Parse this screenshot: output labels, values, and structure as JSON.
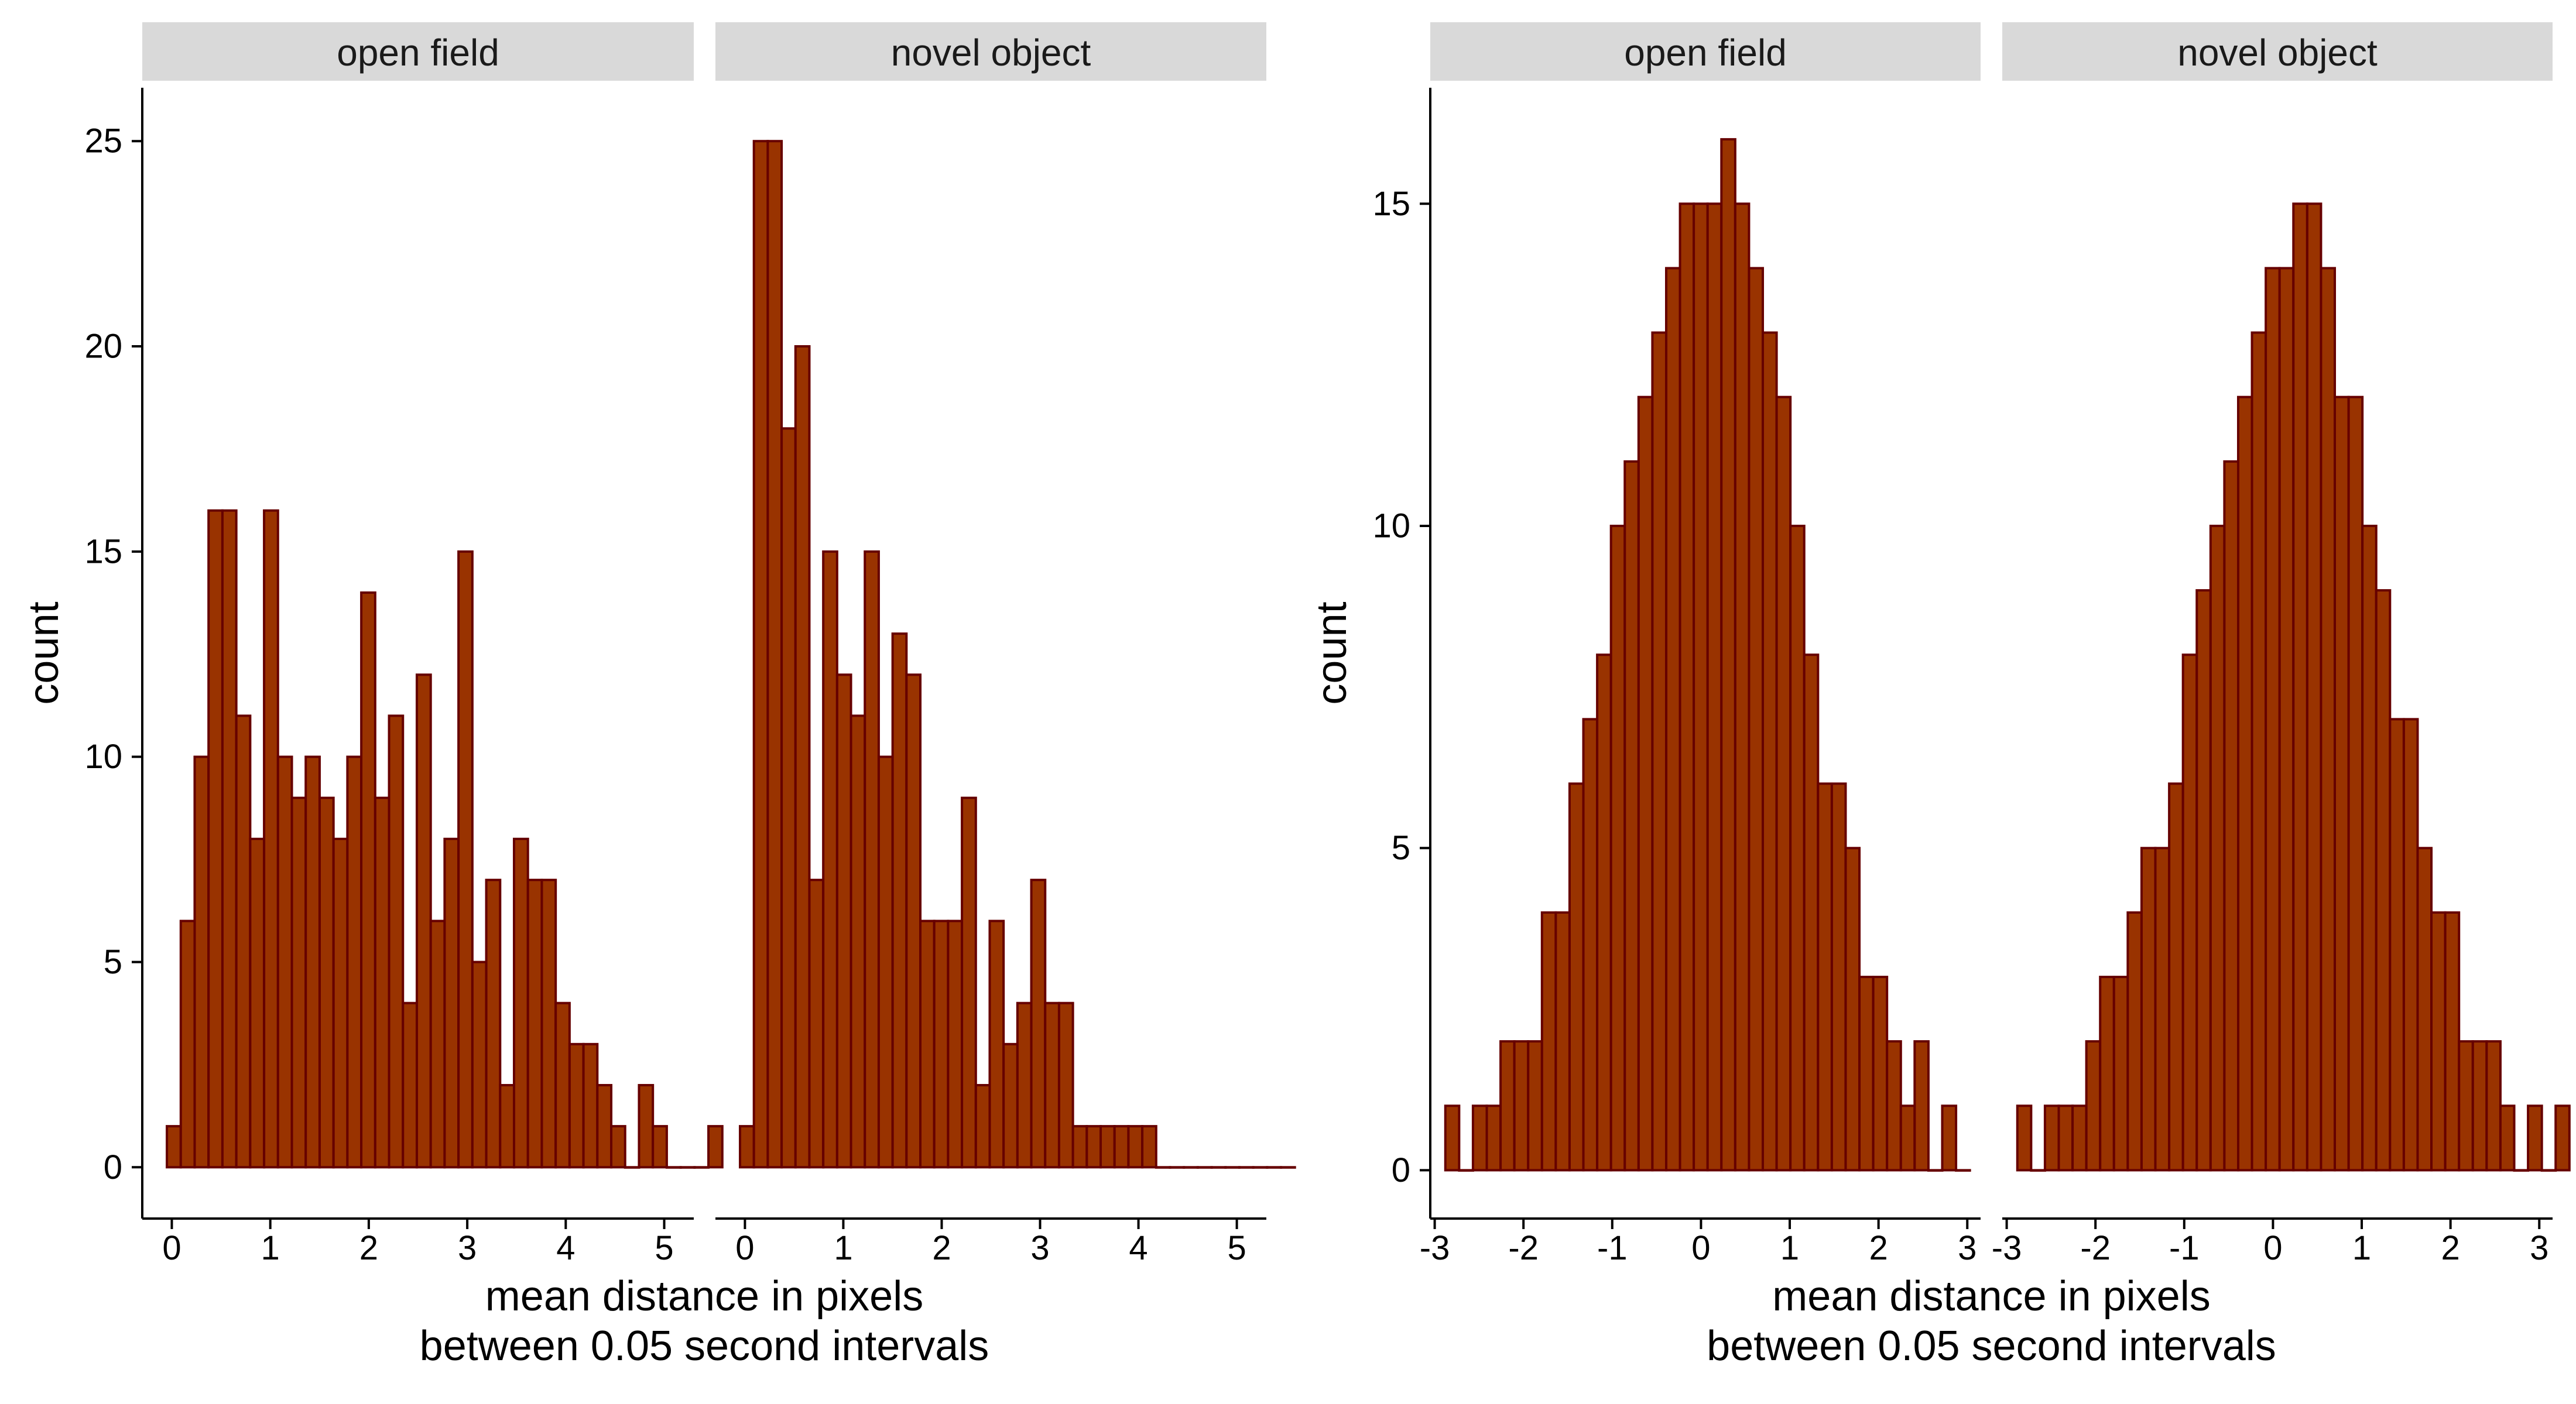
{
  "chart_data": [
    {
      "type": "bar",
      "ylabel": "count",
      "xlabel_line1": "mean distance in pixels",
      "xlabel_line2": "between 0.05 second intervals",
      "xlim": [
        -0.3,
        5.3
      ],
      "ylim": [
        -1.25,
        26.3
      ],
      "x_ticks": [
        0,
        1,
        2,
        3,
        4,
        5
      ],
      "x_tick_labels": [
        "0",
        "1",
        "2",
        "3",
        "4",
        "5"
      ],
      "y_ticks": [
        0,
        5,
        10,
        15,
        20,
        25
      ],
      "y_tick_labels": [
        "0",
        "5",
        "10",
        "15",
        "20",
        "25"
      ],
      "bin_start": -0.05,
      "bin_width": 0.141,
      "panels": [
        {
          "strip": "open field",
          "values": [
            1,
            6,
            10,
            16,
            16,
            11,
            8,
            16,
            10,
            9,
            10,
            9,
            8,
            10,
            14,
            9,
            11,
            4,
            12,
            6,
            8,
            15,
            5,
            7,
            2,
            8,
            7,
            7,
            4,
            3,
            3,
            2,
            1,
            0,
            2,
            1,
            0,
            0,
            0,
            1
          ]
        },
        {
          "strip": "novel object",
          "values": [
            1,
            25,
            25,
            18,
            20,
            7,
            15,
            12,
            11,
            15,
            10,
            13,
            12,
            6,
            6,
            6,
            9,
            2,
            6,
            3,
            4,
            7,
            4,
            4,
            1,
            1,
            1,
            1,
            1,
            1,
            0,
            0,
            0,
            0,
            0,
            0,
            0,
            0,
            0,
            0
          ]
        }
      ]
    },
    {
      "type": "bar",
      "ylabel": "count",
      "xlabel_line1": "mean distance in pixels",
      "xlabel_line2": "between 0.05 second intervals",
      "xlim": [
        -3.05,
        3.15
      ],
      "ylim": [
        -0.75,
        16.8
      ],
      "x_ticks": [
        -3,
        -2,
        -1,
        0,
        1,
        2,
        3
      ],
      "x_tick_labels": [
        "-3",
        "-2",
        "-1",
        "0",
        "1",
        "2",
        "3"
      ],
      "y_ticks": [
        0,
        5,
        10,
        15
      ],
      "y_tick_labels": [
        "0",
        "5",
        "10",
        "15"
      ],
      "bin_start": -2.88,
      "bin_width": 0.1555,
      "panels": [
        {
          "strip": "open field",
          "values": [
            1,
            0,
            1,
            1,
            2,
            2,
            2,
            4,
            4,
            6,
            7,
            8,
            10,
            11,
            12,
            13,
            14,
            15,
            15,
            15,
            16,
            15,
            14,
            13,
            12,
            10,
            8,
            6,
            6,
            5,
            3,
            3,
            2,
            1,
            2,
            0,
            1,
            0
          ]
        },
        {
          "strip": "novel object",
          "values": [
            1,
            0,
            1,
            1,
            1,
            2,
            3,
            3,
            4,
            5,
            5,
            6,
            8,
            9,
            10,
            11,
            12,
            13,
            14,
            14,
            15,
            15,
            14,
            12,
            12,
            10,
            9,
            7,
            7,
            5,
            4,
            4,
            2,
            2,
            2,
            1,
            0,
            1,
            0,
            1
          ]
        }
      ]
    }
  ]
}
